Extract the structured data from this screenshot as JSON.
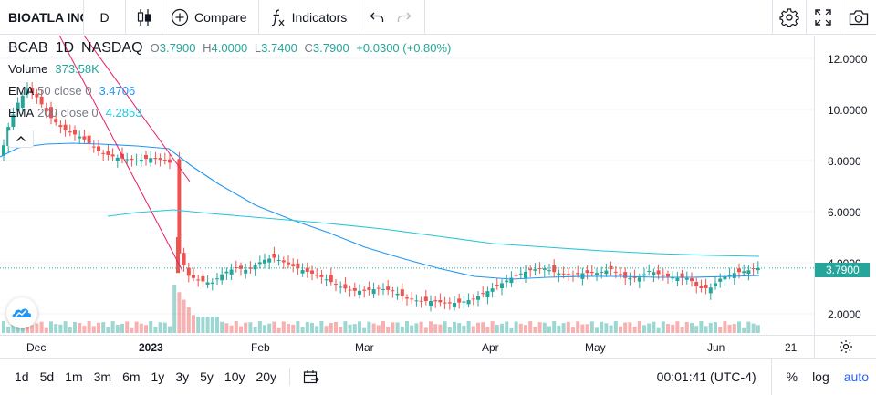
{
  "toolbar": {
    "symbol": "BIOATLA INC",
    "interval": "D",
    "compare_label": "Compare",
    "indicators_label": "Indicators"
  },
  "legend": {
    "symbol": "BCAB",
    "interval": "1D",
    "exchange": "NASDAQ",
    "open_key": "O",
    "open": "3.7900",
    "high_key": "H",
    "high": "4.0000",
    "low_key": "L",
    "low": "3.7400",
    "close_key": "C",
    "close": "3.7900",
    "change": "+0.0300 (+0.80%)",
    "studies": [
      {
        "name": "Volume",
        "params": "",
        "value": "373.58K",
        "color": "#26a69a"
      },
      {
        "name": "EMA",
        "params": "50 close 0",
        "value": "3.4706",
        "color": "#2196f3"
      },
      {
        "name": "EMA",
        "params": "200 close 0",
        "value": "4.2853",
        "color": "#26c6da"
      }
    ]
  },
  "price_scale": {
    "ticks": [
      "12.0000",
      "10.0000",
      "8.0000",
      "6.0000",
      "4.0000",
      "2.0000"
    ],
    "last_price": "3.7900"
  },
  "time_axis": {
    "ticks": [
      {
        "label": "Dec",
        "bold": false
      },
      {
        "label": "2023",
        "bold": true
      },
      {
        "label": "Feb",
        "bold": false
      },
      {
        "label": "Mar",
        "bold": false
      },
      {
        "label": "Apr",
        "bold": false
      },
      {
        "label": "May",
        "bold": false
      },
      {
        "label": "Jun",
        "bold": false
      },
      {
        "label": "21",
        "bold": false
      }
    ]
  },
  "bottom_bar": {
    "ranges": [
      "1d",
      "5d",
      "1m",
      "3m",
      "6m",
      "1y",
      "3y",
      "5y",
      "10y",
      "20y"
    ],
    "clock": "00:01:41 (UTC-4)",
    "percent_label": "%",
    "log_label": "log",
    "auto_label": "auto"
  },
  "colors": {
    "up": "#26a69a",
    "down": "#ef5350",
    "ema50": "#2196f3",
    "ema200": "#26c6da",
    "trendline": "#e91e63"
  },
  "icons": [
    "candles-icon",
    "plus-circle-icon",
    "fx-icon",
    "undo-icon",
    "redo-icon",
    "gear-icon",
    "fullscreen-icon",
    "camera-icon",
    "chevron-up-icon",
    "tradingview-logo-icon",
    "date-range-icon",
    "axis-settings-icon"
  ]
}
